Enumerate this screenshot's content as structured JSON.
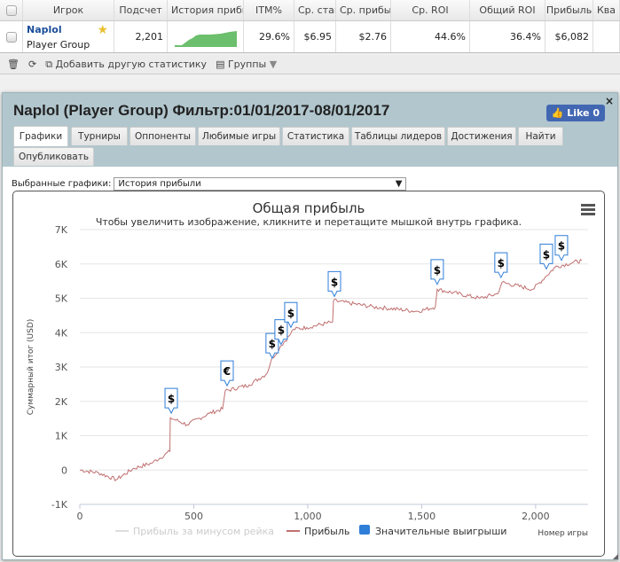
{
  "table": {
    "headers": [
      "Игрок",
      "Подсчет",
      "История прибыли",
      "ITM%",
      "Ср. ставка",
      "Ср. прибыль",
      "Ср. ROI",
      "Общий ROI",
      "Прибыль",
      "Ква"
    ],
    "row": {
      "name": "Naplol",
      "group": "Player Group",
      "count": "2,201",
      "itm": "29.6%",
      "avg_stake": "$6.95",
      "avg_profit": "$2.76",
      "avg_roi": "44.6%",
      "total_roi": "36.4%",
      "profit": "$6,082"
    }
  },
  "toolbar": {
    "add_stat": "Добавить другую статистику",
    "groups": "Группы"
  },
  "panel": {
    "title": "Naplol (Player Group) Фильтр:01/01/2017-08/01/2017",
    "like": "Like 0",
    "close": "×",
    "tabs": [
      "Графики",
      "Турниры",
      "Оппоненты",
      "Любимые игры",
      "Статистика",
      "Таблицы лидеров",
      "Достижения",
      "Найти",
      "Опубликовать"
    ],
    "select_label": "Выбранные графики:",
    "select_value": "История прибыли"
  },
  "chart_data": {
    "type": "line",
    "title": "Общая прибыль",
    "subtitle": "Чтобы увеличить изображение, кликните и перетащите мышкой внутрь графика.",
    "xlabel": "Номер игры",
    "ylabel": "Суммарный итог (USD)",
    "xlim": [
      0,
      2230
    ],
    "ylim": [
      -1000,
      7000
    ],
    "xticks": [
      0,
      500,
      1000,
      1500,
      2000
    ],
    "xtick_labels": [
      "0",
      "500",
      "1,000",
      "1,500",
      "2,000"
    ],
    "yticks": [
      -1000,
      0,
      1000,
      2000,
      3000,
      4000,
      5000,
      6000,
      7000
    ],
    "ytick_labels": [
      "-1K",
      "0",
      "1K",
      "2K",
      "3K",
      "4K",
      "5K",
      "6K",
      "7K"
    ],
    "legend": [
      "Прибыль за минусом рейка",
      "Прибыль",
      "Значительные выигрыши"
    ],
    "colors": {
      "profit": "#c07070",
      "rake": "#dddddd",
      "wins": "#2f7ed8"
    },
    "series": [
      {
        "name": "Прибыль",
        "points": [
          [
            0,
            0
          ],
          [
            82,
            -80
          ],
          [
            160,
            -280
          ],
          [
            237,
            50
          ],
          [
            315,
            200
          ],
          [
            395,
            540
          ],
          [
            397,
            1520
          ],
          [
            471,
            1320
          ],
          [
            568,
            1650
          ],
          [
            626,
            1780
          ],
          [
            638,
            2300
          ],
          [
            743,
            2480
          ],
          [
            821,
            2810
          ],
          [
            840,
            3200
          ],
          [
            879,
            3590
          ],
          [
            918,
            3900
          ],
          [
            938,
            4100
          ],
          [
            996,
            4150
          ],
          [
            1109,
            4310
          ],
          [
            1113,
            4930
          ],
          [
            1288,
            4750
          ],
          [
            1482,
            4620
          ],
          [
            1560,
            4750
          ],
          [
            1568,
            5260
          ],
          [
            1755,
            5000
          ],
          [
            1833,
            5130
          ],
          [
            1852,
            5460
          ],
          [
            1988,
            5260
          ],
          [
            2047,
            5650
          ],
          [
            2086,
            5910
          ],
          [
            2163,
            6040
          ],
          [
            2202,
            6100
          ]
        ]
      }
    ],
    "big_wins": [
      {
        "x": 401,
        "y": 1500,
        "symbol": "$"
      },
      {
        "x": 646,
        "y": 2300,
        "symbol": "€"
      },
      {
        "x": 844,
        "y": 3100,
        "symbol": "$"
      },
      {
        "x": 883,
        "y": 3500,
        "symbol": "$"
      },
      {
        "x": 926,
        "y": 4000,
        "symbol": "$"
      },
      {
        "x": 1117,
        "y": 4900,
        "symbol": "$"
      },
      {
        "x": 1568,
        "y": 5250,
        "symbol": "$"
      },
      {
        "x": 1848,
        "y": 5450,
        "symbol": "$"
      },
      {
        "x": 2047,
        "y": 5700,
        "symbol": "$"
      },
      {
        "x": 2113,
        "y": 5950,
        "symbol": "$"
      }
    ]
  }
}
